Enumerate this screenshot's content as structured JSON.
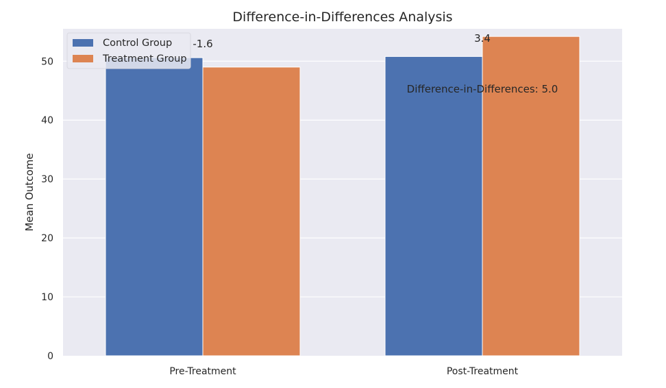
{
  "chart_data": {
    "type": "bar",
    "title": "Difference-in-Differences Analysis",
    "xlabel": "",
    "ylabel": "Mean Outcome",
    "categories": [
      "Pre-Treatment",
      "Post-Treatment"
    ],
    "series": [
      {
        "name": "Control Group",
        "values": [
          50.6,
          50.8
        ],
        "color": "#4c72b0"
      },
      {
        "name": "Treatment Group",
        "values": [
          49.0,
          54.2
        ],
        "color": "#dd8452"
      }
    ],
    "ylim": [
      0,
      55.5
    ],
    "yticks": [
      0,
      10,
      20,
      30,
      40,
      50
    ],
    "grid": true,
    "background": "#eaeaf2",
    "legend_position": "top-left",
    "annotations": {
      "pre_diff": "-1.6",
      "post_diff": "3.4",
      "did": "Difference-in-Differences: 5.0"
    }
  }
}
